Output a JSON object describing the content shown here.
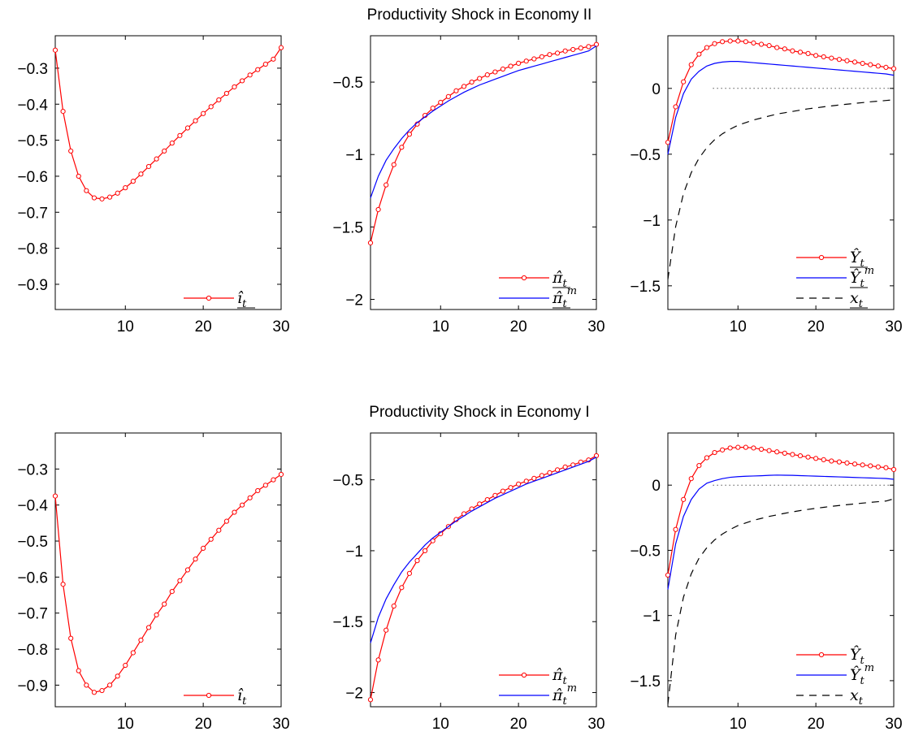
{
  "rows": [
    {
      "title": "Productivity Shock in Economy II"
    },
    {
      "title": "Productivity Shock in Economy I"
    }
  ],
  "colors": {
    "red": "#ff0000",
    "blue": "#0000ff",
    "black": "#000000"
  },
  "chart_data": [
    {
      "type": "line",
      "row": 0,
      "col": 0,
      "x": [
        1,
        2,
        3,
        4,
        5,
        6,
        7,
        8,
        9,
        10,
        11,
        12,
        13,
        14,
        15,
        16,
        17,
        18,
        19,
        20,
        21,
        22,
        23,
        24,
        25,
        26,
        27,
        28,
        29,
        30
      ],
      "xlim": [
        1,
        30
      ],
      "ylim": [
        -0.97,
        -0.21
      ],
      "xticks": [
        10,
        20,
        30
      ],
      "yticks": [
        -0.3,
        -0.4,
        -0.5,
        -0.6,
        -0.7,
        -0.8,
        -0.9
      ],
      "ytick_labels": [
        "−0.3",
        "−0.4",
        "−0.5",
        "−0.6",
        "−0.7",
        "−0.8",
        "−0.9"
      ],
      "series": [
        {
          "name": "î_t",
          "color": "red",
          "marker": "circle",
          "dash": "",
          "values": [
            -0.25,
            -0.42,
            -0.53,
            -0.6,
            -0.64,
            -0.66,
            -0.663,
            -0.658,
            -0.647,
            -0.632,
            -0.614,
            -0.594,
            -0.573,
            -0.552,
            -0.53,
            -0.508,
            -0.487,
            -0.466,
            -0.446,
            -0.426,
            -0.407,
            -0.388,
            -0.37,
            -0.352,
            -0.335,
            -0.319,
            -0.304,
            -0.289,
            -0.275,
            -0.243
          ]
        }
      ],
      "legend": {
        "position": "bottom-right",
        "entries": [
          {
            "base": "î",
            "sub": "t",
            "sup": "",
            "underline": true
          }
        ]
      }
    },
    {
      "type": "line",
      "row": 0,
      "col": 1,
      "x": [
        1,
        2,
        3,
        4,
        5,
        6,
        7,
        8,
        9,
        10,
        11,
        12,
        13,
        14,
        15,
        16,
        17,
        18,
        19,
        20,
        21,
        22,
        23,
        24,
        25,
        26,
        27,
        28,
        29,
        30
      ],
      "xlim": [
        1,
        30
      ],
      "ylim": [
        -2.07,
        -0.18
      ],
      "xticks": [
        10,
        20,
        30
      ],
      "yticks": [
        -0.5,
        -1,
        -1.5,
        -2
      ],
      "ytick_labels": [
        "−0.5",
        "−1",
        "−1.5",
        "−2"
      ],
      "series": [
        {
          "name": "π̂_t",
          "color": "red",
          "marker": "circle",
          "dash": "",
          "values": [
            -1.61,
            -1.38,
            -1.21,
            -1.07,
            -0.95,
            -0.86,
            -0.79,
            -0.73,
            -0.68,
            -0.64,
            -0.6,
            -0.56,
            -0.53,
            -0.5,
            -0.475,
            -0.45,
            -0.43,
            -0.41,
            -0.39,
            -0.37,
            -0.355,
            -0.34,
            -0.325,
            -0.31,
            -0.3,
            -0.285,
            -0.275,
            -0.265,
            -0.255,
            -0.24
          ]
        },
        {
          "name": "π̂_t^m",
          "color": "blue",
          "marker": "none",
          "dash": "",
          "values": [
            -1.3,
            -1.15,
            -1.04,
            -0.96,
            -0.89,
            -0.83,
            -0.78,
            -0.74,
            -0.7,
            -0.665,
            -0.63,
            -0.6,
            -0.57,
            -0.545,
            -0.52,
            -0.5,
            -0.48,
            -0.46,
            -0.44,
            -0.42,
            -0.405,
            -0.39,
            -0.375,
            -0.36,
            -0.345,
            -0.33,
            -0.315,
            -0.3,
            -0.285,
            -0.25
          ]
        }
      ],
      "legend": {
        "position": "bottom-right",
        "entries": [
          {
            "base": "π̂",
            "sub": "t",
            "sup": "",
            "underline": true
          },
          {
            "base": "π̂",
            "sub": "t",
            "sup": "m",
            "underline": true
          }
        ]
      }
    },
    {
      "type": "line",
      "row": 0,
      "col": 2,
      "x": [
        1,
        2,
        3,
        4,
        5,
        6,
        7,
        8,
        9,
        10,
        11,
        12,
        13,
        14,
        15,
        16,
        17,
        18,
        19,
        20,
        21,
        22,
        23,
        24,
        25,
        26,
        27,
        28,
        29,
        30
      ],
      "xlim": [
        1,
        30
      ],
      "ylim": [
        -1.68,
        0.4
      ],
      "xticks": [
        10,
        20,
        30
      ],
      "yticks": [
        0,
        -0.5,
        -1,
        -1.5
      ],
      "ytick_labels": [
        "0",
        "−0.5",
        "−1",
        "−1.5"
      ],
      "hline": 0,
      "series": [
        {
          "name": "Ŷ_t",
          "color": "red",
          "marker": "circle",
          "dash": "",
          "values": [
            -0.41,
            -0.14,
            0.05,
            0.18,
            0.26,
            0.31,
            0.34,
            0.355,
            0.36,
            0.36,
            0.355,
            0.345,
            0.335,
            0.325,
            0.31,
            0.3,
            0.285,
            0.275,
            0.265,
            0.25,
            0.24,
            0.23,
            0.22,
            0.21,
            0.2,
            0.19,
            0.18,
            0.17,
            0.16,
            0.15
          ]
        },
        {
          "name": "Ŷ_t^m",
          "color": "blue",
          "marker": "none",
          "dash": "",
          "values": [
            -0.5,
            -0.22,
            -0.04,
            0.07,
            0.13,
            0.17,
            0.19,
            0.2,
            0.205,
            0.205,
            0.2,
            0.195,
            0.19,
            0.185,
            0.18,
            0.175,
            0.17,
            0.165,
            0.16,
            0.155,
            0.15,
            0.145,
            0.14,
            0.135,
            0.13,
            0.125,
            0.12,
            0.115,
            0.11,
            0.1
          ]
        },
        {
          "name": "x_t",
          "color": "black",
          "marker": "none",
          "dash": "9,7",
          "values": [
            -1.45,
            -1.05,
            -0.8,
            -0.64,
            -0.53,
            -0.45,
            -0.39,
            -0.345,
            -0.31,
            -0.28,
            -0.26,
            -0.24,
            -0.225,
            -0.21,
            -0.195,
            -0.185,
            -0.175,
            -0.165,
            -0.155,
            -0.148,
            -0.14,
            -0.133,
            -0.126,
            -0.12,
            -0.114,
            -0.108,
            -0.102,
            -0.097,
            -0.092,
            -0.087
          ]
        }
      ],
      "legend": {
        "position": "bottom-right",
        "entries": [
          {
            "base": "Ŷ",
            "sub": "t",
            "sup": "",
            "underline": true
          },
          {
            "base": "Ŷ",
            "sub": "t",
            "sup": "m",
            "underline": true
          },
          {
            "base": "x",
            "sub": "t",
            "sup": "",
            "underline": true
          }
        ]
      }
    },
    {
      "type": "line",
      "row": 1,
      "col": 0,
      "x": [
        1,
        2,
        3,
        4,
        5,
        6,
        7,
        8,
        9,
        10,
        11,
        12,
        13,
        14,
        15,
        16,
        17,
        18,
        19,
        20,
        21,
        22,
        23,
        24,
        25,
        26,
        27,
        28,
        29,
        30
      ],
      "xlim": [
        1,
        30
      ],
      "ylim": [
        -0.96,
        -0.2
      ],
      "xticks": [
        10,
        20,
        30
      ],
      "yticks": [
        -0.3,
        -0.4,
        -0.5,
        -0.6,
        -0.7,
        -0.8,
        -0.9
      ],
      "ytick_labels": [
        "−0.3",
        "−0.4",
        "−0.5",
        "−0.6",
        "−0.7",
        "−0.8",
        "−0.9"
      ],
      "series": [
        {
          "name": "î_t",
          "color": "red",
          "marker": "circle",
          "dash": "",
          "values": [
            -0.375,
            -0.62,
            -0.77,
            -0.86,
            -0.9,
            -0.92,
            -0.915,
            -0.9,
            -0.875,
            -0.845,
            -0.81,
            -0.775,
            -0.74,
            -0.705,
            -0.675,
            -0.64,
            -0.61,
            -0.58,
            -0.55,
            -0.52,
            -0.495,
            -0.47,
            -0.445,
            -0.42,
            -0.4,
            -0.38,
            -0.36,
            -0.345,
            -0.33,
            -0.315
          ]
        }
      ],
      "legend": {
        "position": "bottom-right",
        "entries": [
          {
            "base": "î",
            "sub": "t",
            "sup": "",
            "underline": false
          }
        ]
      }
    },
    {
      "type": "line",
      "row": 1,
      "col": 1,
      "x": [
        1,
        2,
        3,
        4,
        5,
        6,
        7,
        8,
        9,
        10,
        11,
        12,
        13,
        14,
        15,
        16,
        17,
        18,
        19,
        20,
        21,
        22,
        23,
        24,
        25,
        26,
        27,
        28,
        29,
        30
      ],
      "xlim": [
        1,
        30
      ],
      "ylim": [
        -2.1,
        -0.17
      ],
      "xticks": [
        10,
        20,
        30
      ],
      "yticks": [
        -0.5,
        -1,
        -1.5,
        -2
      ],
      "ytick_labels": [
        "−0.5",
        "−1",
        "−1.5",
        "−2"
      ],
      "series": [
        {
          "name": "π̂_t",
          "color": "red",
          "marker": "circle",
          "dash": "",
          "values": [
            -2.05,
            -1.77,
            -1.56,
            -1.39,
            -1.26,
            -1.16,
            -1.07,
            -1.0,
            -0.93,
            -0.88,
            -0.83,
            -0.78,
            -0.74,
            -0.705,
            -0.67,
            -0.64,
            -0.61,
            -0.58,
            -0.555,
            -0.53,
            -0.51,
            -0.49,
            -0.47,
            -0.45,
            -0.43,
            -0.41,
            -0.395,
            -0.375,
            -0.36,
            -0.33
          ]
        },
        {
          "name": "π̂_t^m",
          "color": "blue",
          "marker": "none",
          "dash": "",
          "values": [
            -1.65,
            -1.47,
            -1.34,
            -1.24,
            -1.15,
            -1.08,
            -1.02,
            -0.96,
            -0.91,
            -0.87,
            -0.83,
            -0.79,
            -0.755,
            -0.72,
            -0.69,
            -0.66,
            -0.63,
            -0.605,
            -0.58,
            -0.555,
            -0.53,
            -0.51,
            -0.49,
            -0.47,
            -0.45,
            -0.43,
            -0.41,
            -0.39,
            -0.37,
            -0.34
          ]
        }
      ],
      "legend": {
        "position": "bottom-right",
        "entries": [
          {
            "base": "π̂",
            "sub": "t",
            "sup": "",
            "underline": false
          },
          {
            "base": "π̂",
            "sub": "t",
            "sup": "m",
            "underline": false
          }
        ]
      }
    },
    {
      "type": "line",
      "row": 1,
      "col": 2,
      "x": [
        1,
        2,
        3,
        4,
        5,
        6,
        7,
        8,
        9,
        10,
        11,
        12,
        13,
        14,
        15,
        16,
        17,
        18,
        19,
        20,
        21,
        22,
        23,
        24,
        25,
        26,
        27,
        28,
        29,
        30
      ],
      "xlim": [
        1,
        30
      ],
      "ylim": [
        -1.7,
        0.4
      ],
      "xticks": [
        10,
        20,
        30
      ],
      "yticks": [
        0,
        -0.5,
        -1,
        -1.5
      ],
      "ytick_labels": [
        "0",
        "−0.5",
        "−1",
        "−1.5"
      ],
      "hline": 0,
      "series": [
        {
          "name": "Ŷ_t",
          "color": "red",
          "marker": "circle",
          "dash": "",
          "values": [
            -0.69,
            -0.34,
            -0.11,
            0.05,
            0.15,
            0.21,
            0.25,
            0.27,
            0.285,
            0.29,
            0.29,
            0.285,
            0.275,
            0.265,
            0.255,
            0.245,
            0.235,
            0.225,
            0.215,
            0.205,
            0.195,
            0.185,
            0.178,
            0.17,
            0.162,
            0.155,
            0.148,
            0.14,
            0.134,
            0.12
          ]
        },
        {
          "name": "Ŷ_t^m",
          "color": "blue",
          "marker": "none",
          "dash": "",
          "values": [
            -0.8,
            -0.45,
            -0.24,
            -0.11,
            -0.03,
            0.015,
            0.035,
            0.05,
            0.06,
            0.065,
            0.068,
            0.07,
            0.072,
            0.075,
            0.077,
            0.076,
            0.075,
            0.073,
            0.071,
            0.069,
            0.067,
            0.065,
            0.063,
            0.061,
            0.059,
            0.057,
            0.055,
            0.053,
            0.051,
            0.045
          ]
        },
        {
          "name": "x_t",
          "color": "black",
          "marker": "none",
          "dash": "9,7",
          "values": [
            -1.68,
            -1.15,
            -0.86,
            -0.68,
            -0.56,
            -0.48,
            -0.42,
            -0.375,
            -0.34,
            -0.31,
            -0.29,
            -0.27,
            -0.255,
            -0.24,
            -0.228,
            -0.216,
            -0.205,
            -0.195,
            -0.186,
            -0.178,
            -0.17,
            -0.163,
            -0.156,
            -0.15,
            -0.144,
            -0.138,
            -0.132,
            -0.127,
            -0.122,
            -0.105
          ]
        }
      ],
      "legend": {
        "position": "bottom-right",
        "entries": [
          {
            "base": "Ŷ",
            "sub": "t",
            "sup": "",
            "underline": false
          },
          {
            "base": "Ŷ",
            "sub": "t",
            "sup": "m",
            "underline": false
          },
          {
            "base": "x",
            "sub": "t",
            "sup": "",
            "underline": false
          }
        ]
      }
    }
  ]
}
